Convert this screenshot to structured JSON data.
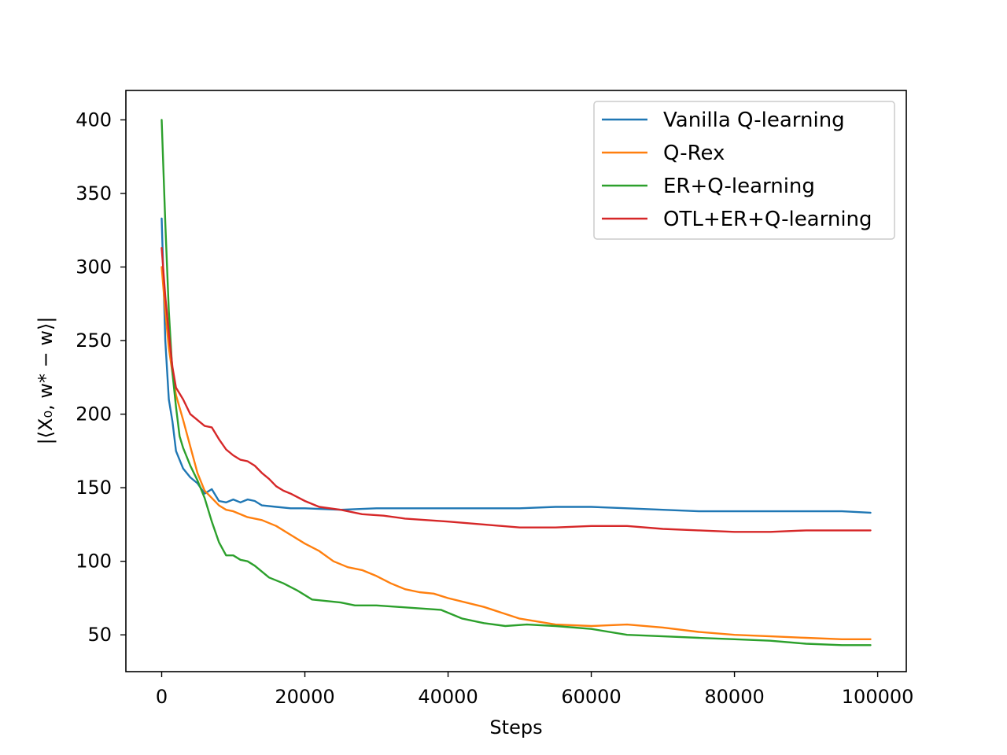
{
  "chart_data": {
    "type": "line",
    "title": "",
    "xlabel": "Steps",
    "ylabel": "|⟨X₀, w* − w⟩|",
    "xlim": [
      -5000,
      104000
    ],
    "ylim": [
      25,
      420
    ],
    "xticks": [
      0,
      20000,
      40000,
      60000,
      80000,
      100000
    ],
    "xtick_labels": [
      "0",
      "20000",
      "40000",
      "60000",
      "80000",
      "100000"
    ],
    "yticks": [
      50,
      100,
      150,
      200,
      250,
      300,
      350,
      400
    ],
    "ytick_labels": [
      "50",
      "100",
      "150",
      "200",
      "250",
      "300",
      "350",
      "400"
    ],
    "grid": false,
    "legend_position": "top-right",
    "series": [
      {
        "name": "Vanilla Q-learning",
        "color": "#1f77b4",
        "x": [
          0,
          500,
          1000,
          1500,
          2000,
          3000,
          4000,
          5000,
          6000,
          7000,
          8000,
          9000,
          10000,
          11000,
          12000,
          13000,
          14000,
          16000,
          18000,
          20000,
          25000,
          30000,
          35000,
          40000,
          45000,
          50000,
          55000,
          60000,
          65000,
          70000,
          75000,
          80000,
          85000,
          90000,
          95000,
          99000
        ],
        "y": [
          333,
          250,
          210,
          195,
          175,
          163,
          157,
          153,
          146,
          149,
          141,
          140,
          142,
          140,
          142,
          141,
          138,
          137,
          136,
          136,
          135,
          136,
          136,
          136,
          136,
          136,
          137,
          137,
          136,
          135,
          134,
          134,
          134,
          134,
          134,
          133
        ]
      },
      {
        "name": "Q-Rex",
        "color": "#ff7f0e",
        "x": [
          0,
          500,
          1000,
          1500,
          2000,
          3000,
          4000,
          5000,
          6000,
          7000,
          8000,
          9000,
          10000,
          12000,
          14000,
          16000,
          18000,
          20000,
          22000,
          24000,
          26000,
          28000,
          30000,
          32000,
          34000,
          36000,
          38000,
          40000,
          45000,
          50000,
          55000,
          60000,
          65000,
          70000,
          75000,
          80000,
          85000,
          90000,
          95000,
          99000
        ],
        "y": [
          300,
          270,
          245,
          228,
          213,
          196,
          178,
          160,
          148,
          143,
          138,
          135,
          134,
          130,
          128,
          124,
          118,
          112,
          107,
          100,
          96,
          94,
          90,
          85,
          81,
          79,
          78,
          75,
          69,
          61,
          57,
          56,
          57,
          55,
          52,
          50,
          49,
          48,
          47,
          47
        ]
      },
      {
        "name": "ER+Q-learning",
        "color": "#2ca02c",
        "x": [
          0,
          500,
          1000,
          1500,
          2000,
          2500,
          3000,
          4000,
          5000,
          6000,
          7000,
          8000,
          9000,
          10000,
          11000,
          12000,
          13000,
          14000,
          15000,
          17000,
          19000,
          21000,
          23000,
          25000,
          27000,
          30000,
          33000,
          36000,
          39000,
          42000,
          45000,
          48000,
          51000,
          55000,
          60000,
          65000,
          70000,
          75000,
          80000,
          85000,
          90000,
          95000,
          99000
        ],
        "y": [
          400,
          330,
          270,
          228,
          205,
          185,
          177,
          165,
          155,
          143,
          127,
          113,
          104,
          104,
          101,
          100,
          97,
          93,
          89,
          85,
          80,
          74,
          73,
          72,
          70,
          70,
          69,
          68,
          67,
          61,
          58,
          56,
          57,
          56,
          54,
          50,
          49,
          48,
          47,
          46,
          44,
          43,
          43
        ]
      },
      {
        "name": "OTL+ER+Q-learning",
        "color": "#d62728",
        "x": [
          0,
          500,
          1000,
          1500,
          2000,
          3000,
          4000,
          5000,
          6000,
          7000,
          8000,
          9000,
          10000,
          11000,
          12000,
          13000,
          14000,
          15000,
          16000,
          17000,
          18000,
          20000,
          22000,
          25000,
          28000,
          31000,
          34000,
          37000,
          40000,
          45000,
          50000,
          55000,
          60000,
          65000,
          70000,
          75000,
          80000,
          85000,
          90000,
          95000,
          99000
        ],
        "y": [
          313,
          280,
          255,
          232,
          218,
          210,
          200,
          196,
          192,
          191,
          183,
          176,
          172,
          169,
          168,
          165,
          160,
          156,
          151,
          148,
          146,
          141,
          137,
          135,
          132,
          131,
          129,
          128,
          127,
          125,
          123,
          123,
          124,
          124,
          122,
          121,
          120,
          120,
          121,
          121,
          121
        ]
      }
    ]
  }
}
